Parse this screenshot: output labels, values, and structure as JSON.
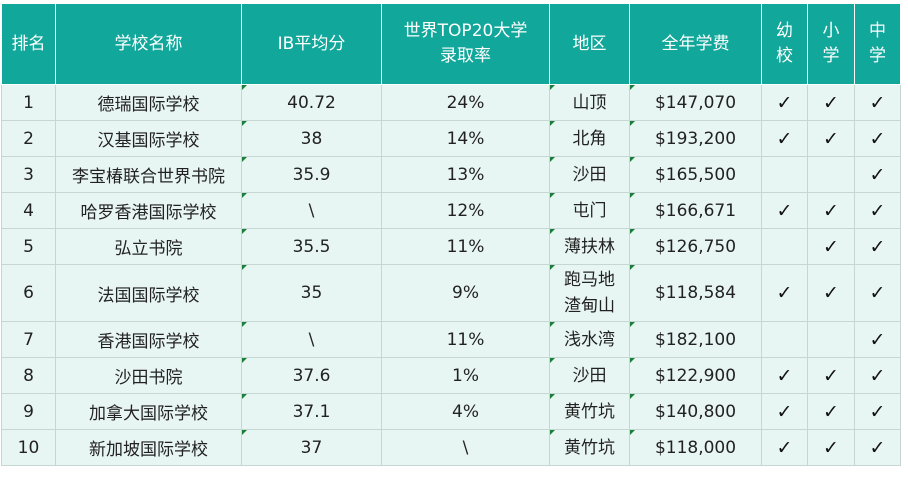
{
  "headers": {
    "rank": "排名",
    "school": "学校名称",
    "ib": "IB平均分",
    "top20": [
      "世界TOP20大学",
      "录取率"
    ],
    "region": "地区",
    "fee": "全年学费",
    "kinder": [
      "幼",
      "校"
    ],
    "primary": [
      "小",
      "学"
    ],
    "secondary": [
      "中",
      "学"
    ]
  },
  "check_mark": "✓",
  "rows": [
    {
      "rank": "1",
      "school": "德瑞国际学校",
      "ib": "40.72",
      "rate": "24%",
      "region": [
        "山顶"
      ],
      "fee": "$147,070",
      "k": true,
      "p": true,
      "s": true
    },
    {
      "rank": "2",
      "school": "汉基国际学校",
      "ib": "38",
      "rate": "14%",
      "region": [
        "北角"
      ],
      "fee": "$193,200",
      "k": true,
      "p": true,
      "s": true
    },
    {
      "rank": "3",
      "school": "李宝椿联合世界书院",
      "ib": "35.9",
      "rate": "13%",
      "region": [
        "沙田"
      ],
      "fee": "$165,500",
      "k": false,
      "p": false,
      "s": true
    },
    {
      "rank": "4",
      "school": "哈罗香港国际学校",
      "ib": "\\",
      "rate": "12%",
      "region": [
        "屯门"
      ],
      "fee": "$166,671",
      "k": true,
      "p": true,
      "s": true
    },
    {
      "rank": "5",
      "school": "弘立书院",
      "ib": "35.5",
      "rate": "11%",
      "region": [
        "薄扶林"
      ],
      "fee": "$126,750",
      "k": false,
      "p": true,
      "s": true
    },
    {
      "rank": "6",
      "school": "法国国际学校",
      "ib": "35",
      "rate": "9%",
      "region": [
        "跑马地",
        "渣甸山"
      ],
      "fee": "$118,584",
      "k": true,
      "p": true,
      "s": true
    },
    {
      "rank": "7",
      "school": "香港国际学校",
      "ib": "\\",
      "rate": "11%",
      "region": [
        "浅水湾"
      ],
      "fee": "$182,100",
      "k": false,
      "p": false,
      "s": true
    },
    {
      "rank": "8",
      "school": "沙田书院",
      "ib": "37.6",
      "rate": "1%",
      "region": [
        "沙田"
      ],
      "fee": "$122,900",
      "k": true,
      "p": true,
      "s": true
    },
    {
      "rank": "9",
      "school": "加拿大国际学校",
      "ib": "37.1",
      "rate": "4%",
      "region": [
        "黄竹坑"
      ],
      "fee": "$140,800",
      "k": true,
      "p": true,
      "s": true
    },
    {
      "rank": "10",
      "school": "新加坡国际学校",
      "ib": "37",
      "rate": "\\",
      "region": [
        "黄竹坑"
      ],
      "fee": "$118,000",
      "k": true,
      "p": true,
      "s": true
    }
  ],
  "colors": {
    "header_bg": "#11a79a",
    "row_bg": "#e8f6f3",
    "border": "#c6d6d3"
  }
}
